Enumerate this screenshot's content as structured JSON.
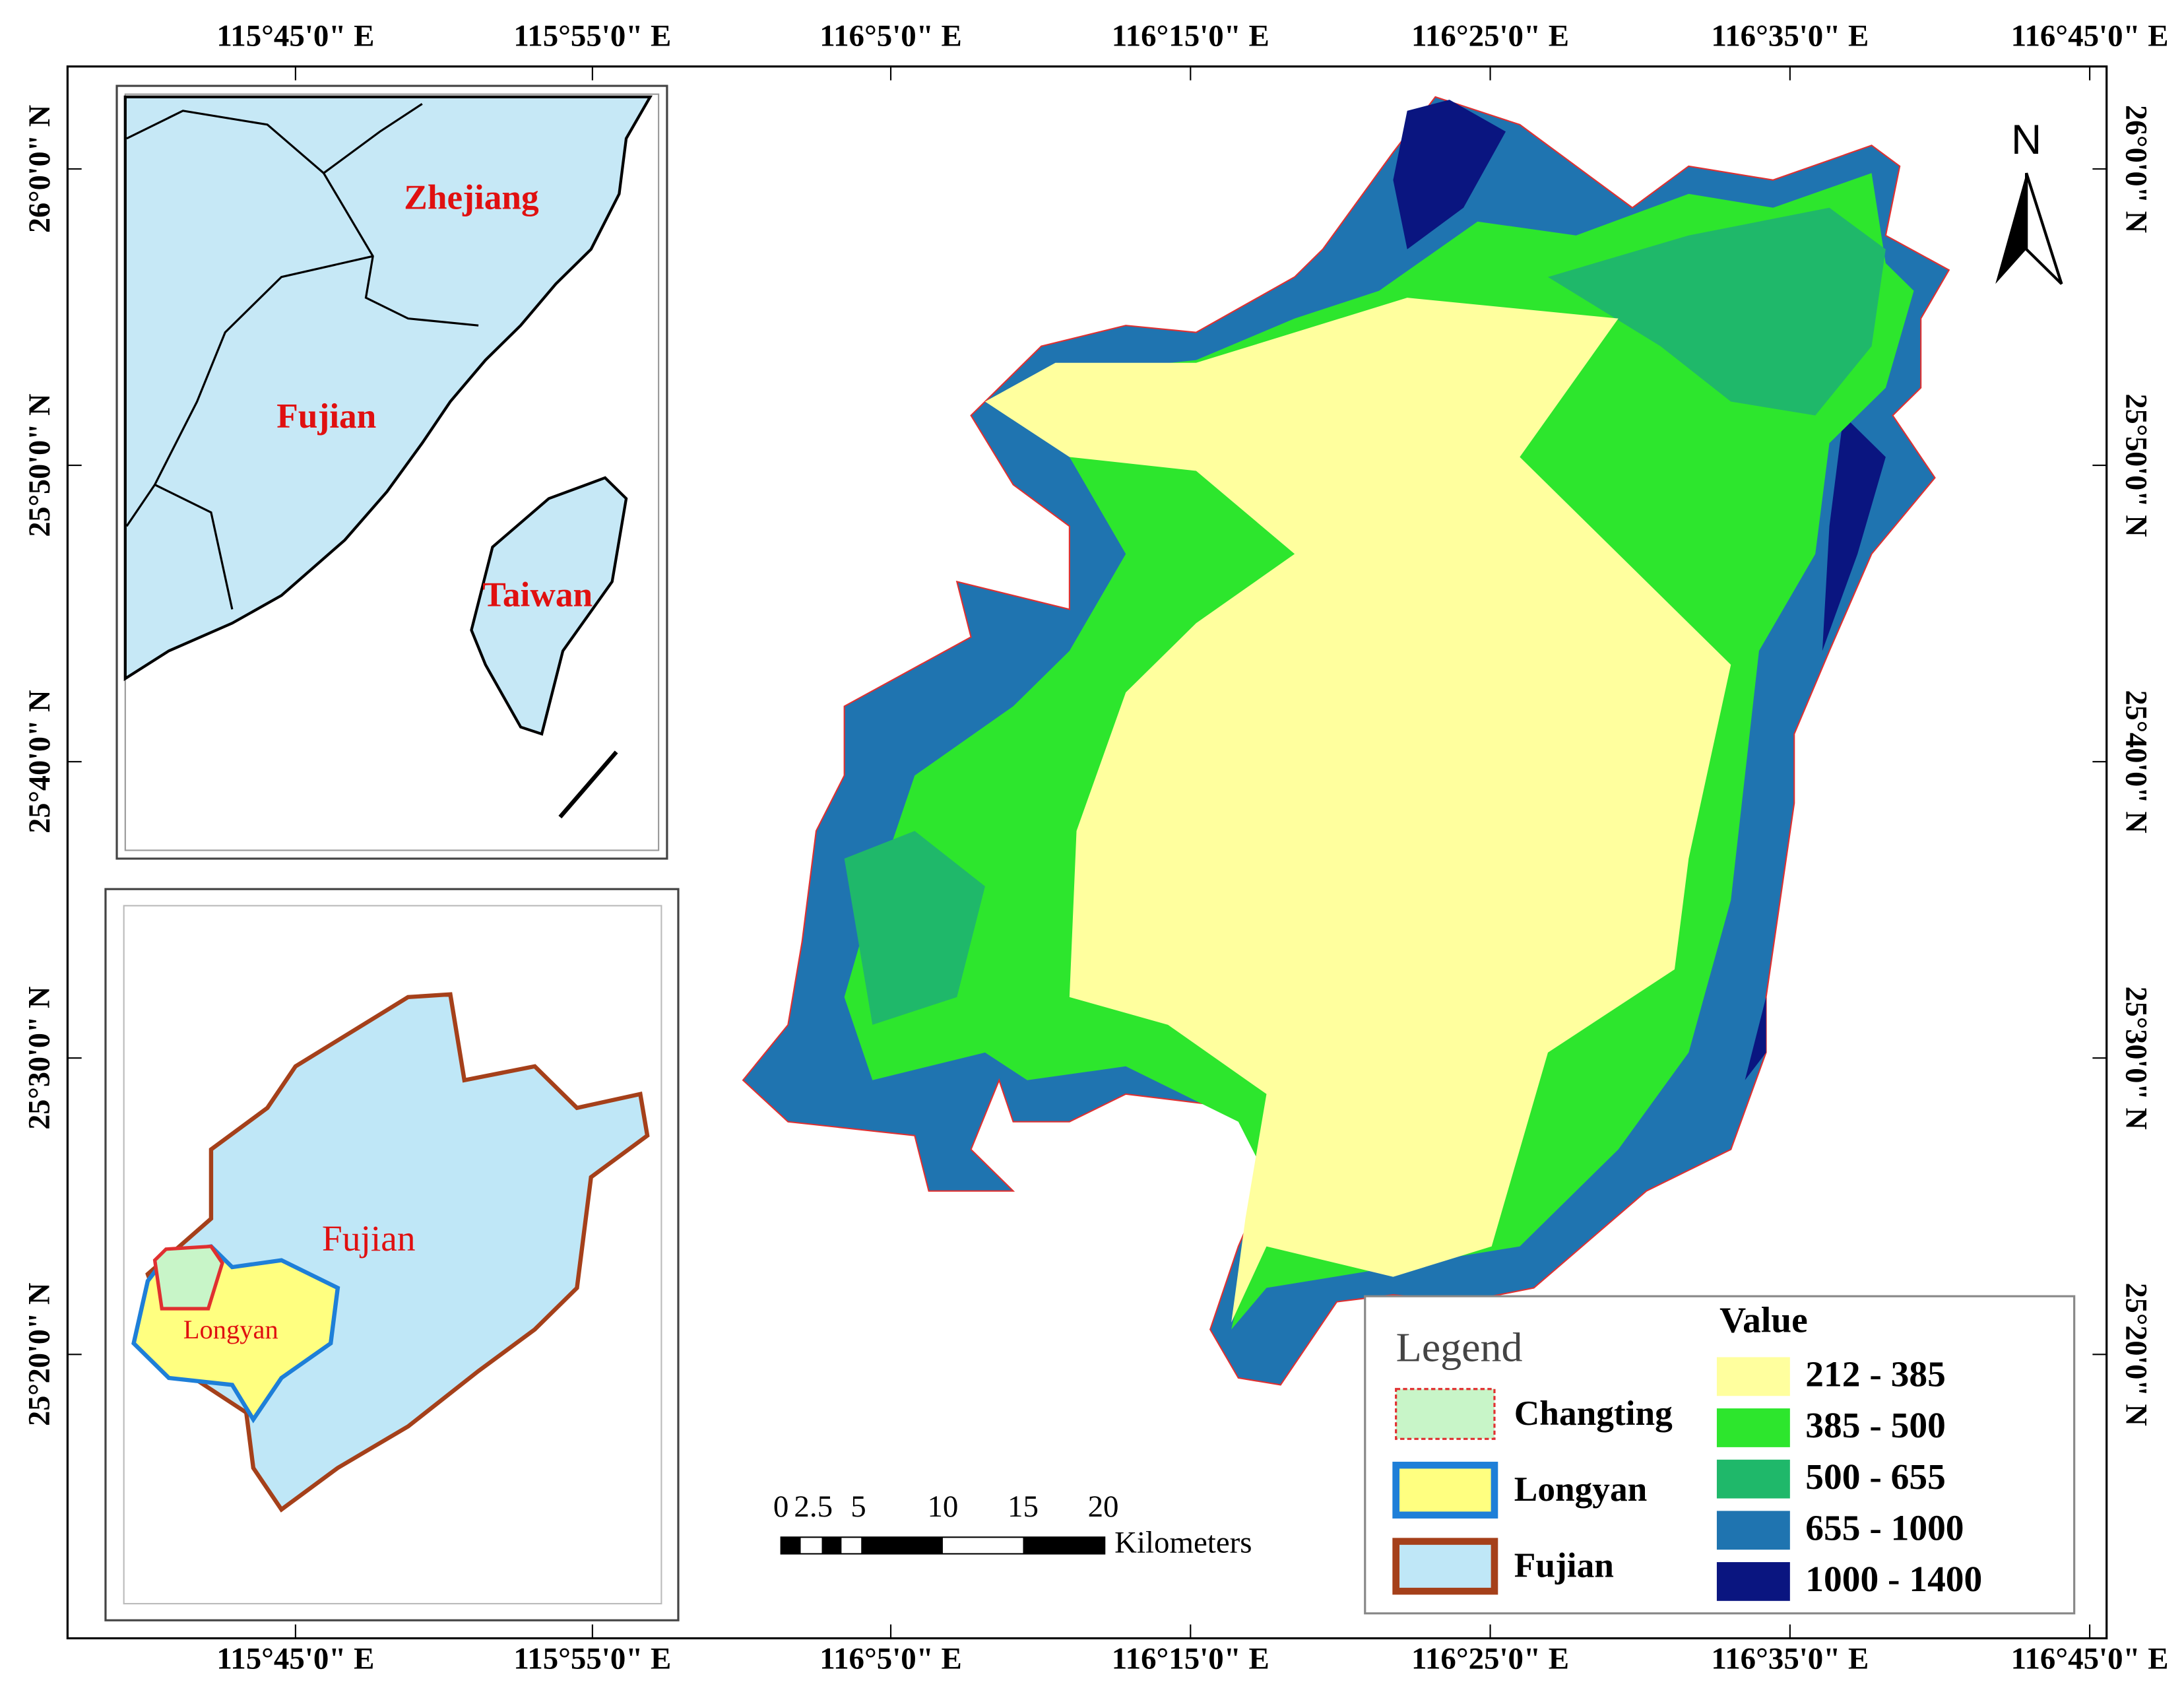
{
  "axes": {
    "top_labels": [
      "115°45'0\" E",
      "115°55'0\" E",
      "116°5'0\" E",
      "116°15'0\" E",
      "116°25'0\" E",
      "116°35'0\" E",
      "116°45'0\" E"
    ],
    "bottom_labels": [
      "115°45'0\" E",
      "115°55'0\" E",
      "116°5'0\" E",
      "116°15'0\" E",
      "116°25'0\" E",
      "116°35'0\" E",
      "116°45'0\" E"
    ],
    "left_labels": [
      "26°0'0\" N",
      "25°50'0\" N",
      "25°40'0\" N",
      "25°30'0\" N",
      "25°20'0\" N"
    ],
    "right_labels": [
      "26°0'0\" N",
      "25°50'0\" N",
      "25°40'0\" N",
      "25°30'0\" N",
      "25°20'0\" N"
    ]
  },
  "inset_top": {
    "labels": [
      "Zhejiang",
      "Fujian",
      "Taiwan"
    ]
  },
  "inset_bottom": {
    "labels": [
      "Fujian",
      "Longyan"
    ]
  },
  "north_arrow": "N",
  "scale_bar": {
    "ticks": [
      "0",
      "2.5",
      "5",
      "10",
      "15",
      "20"
    ],
    "unit": "Kilometers"
  },
  "legend": {
    "title": "Legend",
    "items": [
      {
        "label": "Changting",
        "fill": "#c8f5c8",
        "stroke": "#e03030"
      },
      {
        "label": "Longyan",
        "fill": "#ffff80",
        "stroke": "#1e7fd8"
      },
      {
        "label": "Fujian",
        "fill": "#bfe7f7",
        "stroke": "#a5401a"
      }
    ],
    "value_title": "Value",
    "classes": [
      {
        "label": "212 - 385",
        "color": "#ffff9e"
      },
      {
        "label": "385 - 500",
        "color": "#2de62d"
      },
      {
        "label": "500 - 655",
        "color": "#1fb86a"
      },
      {
        "label": "655 - 1000",
        "color": "#1f74b0"
      },
      {
        "label": "1000 - 1400",
        "color": "#0a1580"
      }
    ]
  }
}
